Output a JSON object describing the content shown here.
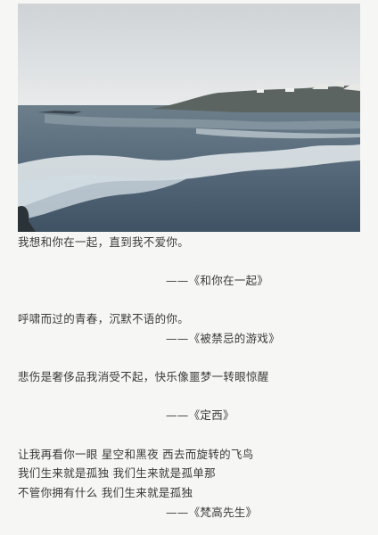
{
  "entries": [
    {
      "quote": [
        "我想和你在一起，直到我不爱你。"
      ],
      "source": "——《和你在一起》"
    },
    {
      "quote": [
        "呼啸而过的青春，沉默不语的你。"
      ],
      "source": "——《被禁忌的游戏》"
    },
    {
      "quote": [
        "悲伤是奢侈品我消受不起，快乐像噩梦一转眼惊醒"
      ],
      "source": "——《定西》"
    },
    {
      "quote": [
        "让我再看你一眼 星空和黑夜 西去而旋转的飞鸟",
        "我们生来就是孤独 我们生来就是孤单那",
        "不管你拥有什么 我们生来就是孤独"
      ],
      "source": "——《梵高先生》"
    }
  ]
}
